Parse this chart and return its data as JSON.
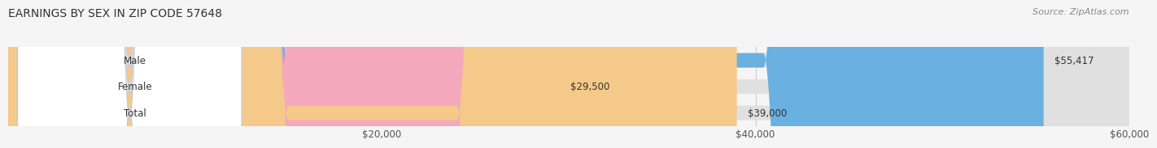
{
  "title": "EARNINGS BY SEX IN ZIP CODE 57648",
  "source": "Source: ZipAtlas.com",
  "categories": [
    "Male",
    "Female",
    "Total"
  ],
  "values": [
    55417,
    29500,
    39000
  ],
  "labels": [
    "$55,417",
    "$29,500",
    "$39,000"
  ],
  "bar_colors": [
    "#6ab0e0",
    "#f4a8bc",
    "#f5c98a"
  ],
  "bar_edge_colors": [
    "#5a9fd4",
    "#e898ac",
    "#e5b97a"
  ],
  "label_bg": [
    "#5a9fd4",
    "#e898ac",
    "#d4a070"
  ],
  "xlim": [
    0,
    60000
  ],
  "xticks": [
    20000,
    40000,
    60000
  ],
  "xticklabels": [
    "$20,000",
    "$40,000",
    "$60,000"
  ],
  "background_color": "#f5f5f5",
  "bar_background": "#e8e8e8",
  "bar_height": 0.55,
  "title_fontsize": 10,
  "source_fontsize": 8
}
